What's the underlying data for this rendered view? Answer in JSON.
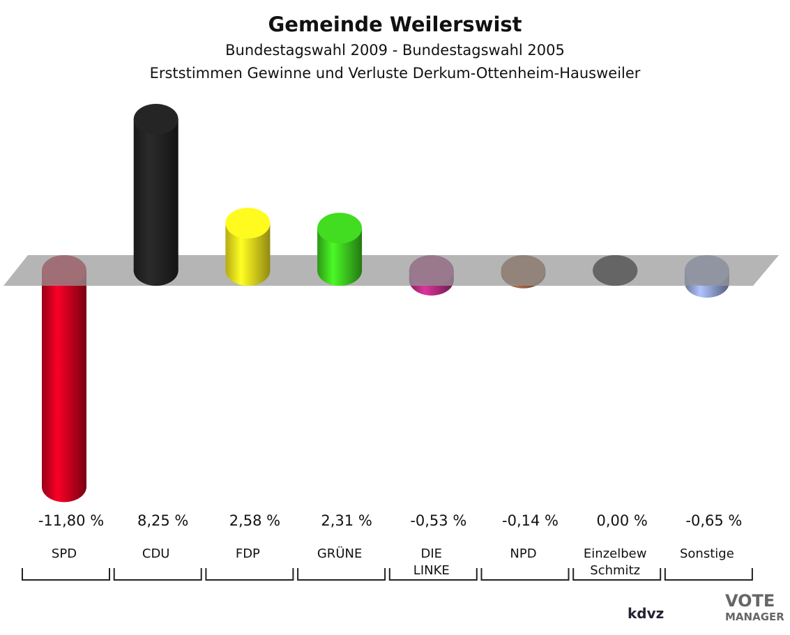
{
  "chart_data": {
    "type": "bar",
    "title": "Gemeinde Weilerswist",
    "subtitle": "Bundestagswahl 2009 - Bundestagswahl 2005",
    "description": "Erststimmen Gewinne und Verluste Derkum-Ottenheim-Hausweiler",
    "categories": [
      "SPD",
      "CDU",
      "FDP",
      "GRÜNE",
      "DIE\nLINKE",
      "NPD",
      "Einzelbew\nSchmitz",
      "Sonstige"
    ],
    "values": [
      -11.8,
      8.25,
      2.58,
      2.31,
      -0.53,
      -0.14,
      0.0,
      -0.65
    ],
    "value_labels": [
      "-11,80 %",
      "8,25 %",
      "2,58 %",
      "2,31 %",
      "-0,53 %",
      "-0,14 %",
      "0,00 %",
      "-0,65 %"
    ],
    "colors": [
      "#c8001e",
      "#222222",
      "#f2e41c",
      "#3cc81e",
      "#b02a7c",
      "#8f5535",
      "#5c5c5c",
      "#8c9ccc"
    ]
  },
  "logos": {
    "kdvz": "kdvz",
    "vote": "VOTE",
    "manager": "MANAGER"
  }
}
